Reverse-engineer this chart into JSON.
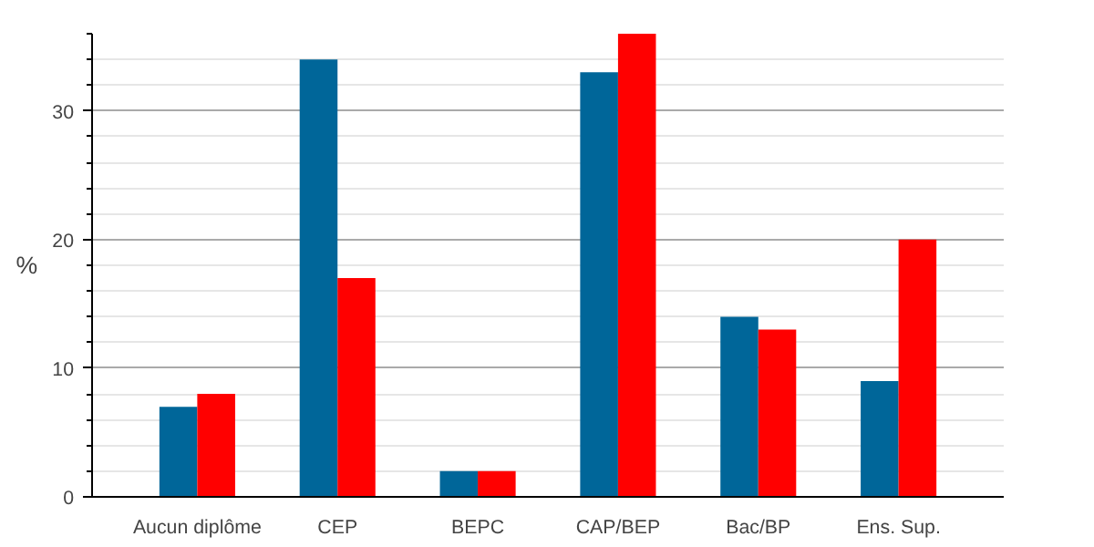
{
  "chart_data": {
    "type": "bar",
    "ylabel": "%",
    "categories": [
      "Aucun diplôme",
      "CEP",
      "BEPC",
      "CAP/BEP",
      "Bac/BP",
      "Ens. Sup."
    ],
    "series": [
      {
        "color": "#006699",
        "values": [
          7,
          34,
          2,
          33,
          14,
          9
        ]
      },
      {
        "color": "#ff0000",
        "values": [
          8,
          17,
          2,
          36,
          13,
          20
        ]
      }
    ],
    "ylim": [
      0,
      36
    ],
    "yticks": [
      0,
      10,
      20,
      30
    ],
    "grid": "y"
  }
}
